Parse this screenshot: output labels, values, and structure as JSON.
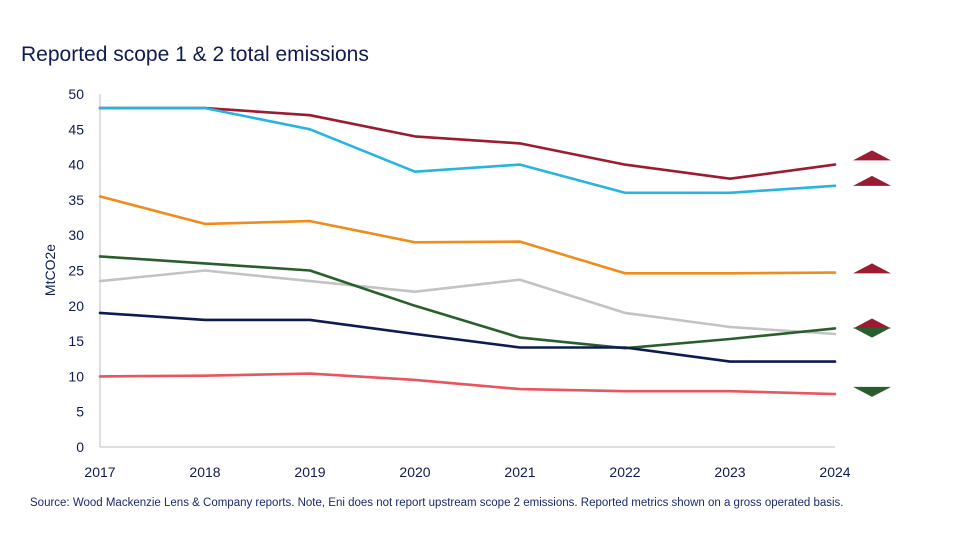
{
  "title": "Reported scope 1 & 2 total emissions",
  "source": "Source: Wood Mackenzie Lens & Company reports. Note, Eni does not report upstream scope 2 emissions. Reported metrics shown on a gross operated basis.",
  "chart_data": {
    "type": "line",
    "title": "Reported scope 1 & 2 total emissions",
    "xlabel": "",
    "ylabel": "MtCO2e",
    "ylim": [
      0,
      50
    ],
    "yticks": [
      0,
      5,
      10,
      15,
      20,
      25,
      30,
      35,
      40,
      45,
      50
    ],
    "x": [
      "2017",
      "2018",
      "2019",
      "2020",
      "2021",
      "2022",
      "2023",
      "2024"
    ],
    "grid": false,
    "legend": "none",
    "series": [
      {
        "color": "#9b1b30",
        "values": [
          48,
          48,
          47,
          44,
          43,
          40,
          38,
          40
        ],
        "trend": "up"
      },
      {
        "color": "#29b4e0",
        "values": [
          48,
          48,
          45,
          39,
          40,
          36,
          36,
          37
        ],
        "trend": "up"
      },
      {
        "color": "#ef8c1e",
        "values": [
          35.5,
          31.6,
          32,
          29,
          29.1,
          24.6,
          24.6,
          24.7
        ],
        "trend": "up"
      },
      {
        "color": "#c3c3c3",
        "values": [
          23.5,
          25,
          23.5,
          22,
          23.7,
          19,
          17,
          16
        ],
        "trend": "up"
      },
      {
        "color": "#2a5e2e",
        "values": [
          27,
          26,
          25,
          20,
          15.5,
          14,
          15.3,
          16.8
        ],
        "trend": "down"
      },
      {
        "color": "#0d1b4f",
        "values": [
          19,
          18,
          18,
          16,
          14.1,
          14.1,
          12.1,
          12.1
        ],
        "trend": "none"
      },
      {
        "color": "#e8555e",
        "values": [
          10,
          10.1,
          10.4,
          9.5,
          8.2,
          7.9,
          7.9,
          7.5
        ],
        "trend": "down"
      }
    ],
    "markers": [
      {
        "icon": "triangle-up-icon",
        "color": "#9b1b30",
        "value": 41.3
      },
      {
        "icon": "triangle-up-icon",
        "color": "#9b1b30",
        "value": 37.7
      },
      {
        "icon": "triangle-up-icon",
        "color": "#9b1b30",
        "value": 25.3
      },
      {
        "icon": "triangle-up-icon",
        "color": "#9b1b30",
        "value": 17.5
      },
      {
        "icon": "triangle-down-icon",
        "color": "#2a5e2e",
        "value": 16.2
      },
      {
        "icon": "triangle-down-icon",
        "color": "#2a5e2e",
        "value": 7.8
      }
    ]
  }
}
